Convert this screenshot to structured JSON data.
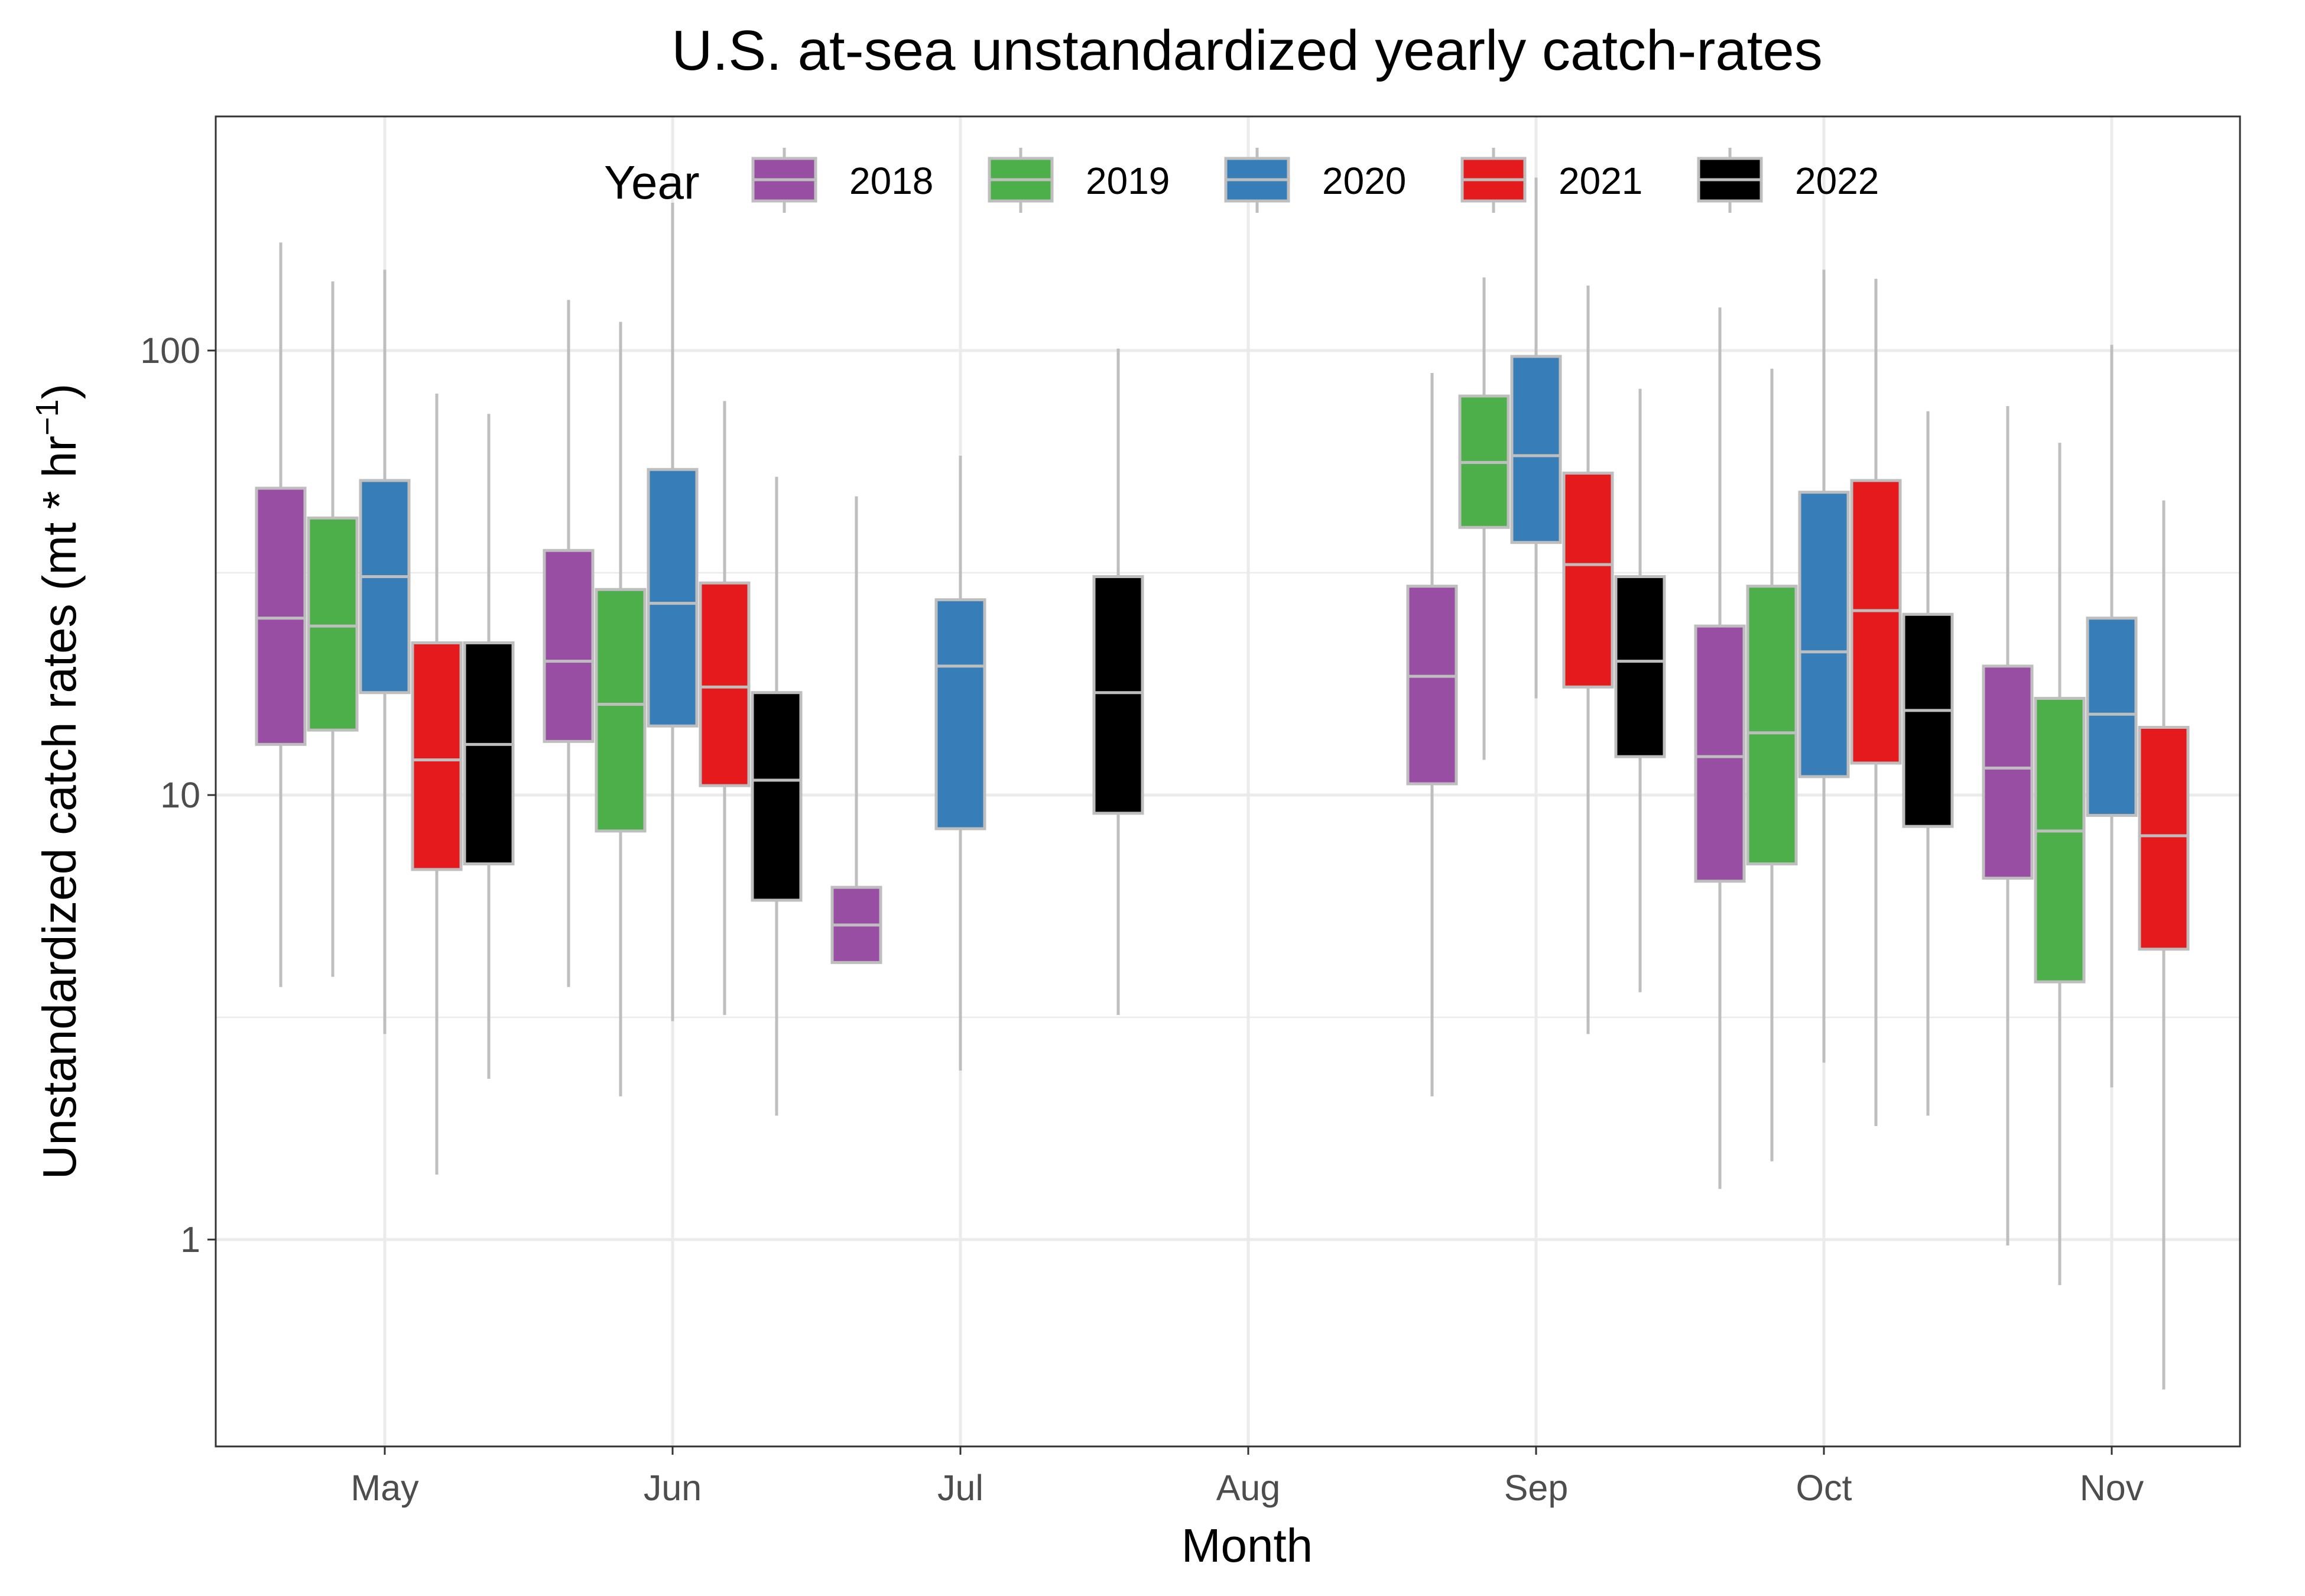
{
  "chart_data": {
    "type": "boxplot",
    "title": "U.S. at-sea unstandardized yearly catch-rates",
    "xlabel": "Month",
    "ylabel": {
      "main": "Unstandardized catch rates (mt * hr",
      "sup": "−1",
      "close": ")"
    },
    "y_scale": "log10",
    "ylim": [
      0.4,
      300
    ],
    "y_ticks": [
      {
        "value": 1,
        "label": "1"
      },
      {
        "value": 10,
        "label": "10"
      },
      {
        "value": 100,
        "label": "100"
      }
    ],
    "categories": [
      "May",
      "Jun",
      "Jul",
      "Aug",
      "Sep",
      "Oct",
      "Nov"
    ],
    "grid": true,
    "legend": {
      "title": "Year",
      "position": "top-inside"
    },
    "colors": {
      "2018": "#984EA3",
      "2019": "#4DAF4A",
      "2020": "#377EB8",
      "2021": "#E41A1C",
      "2022": "#000000",
      "box_border": "#BEBEBE",
      "whisker": "#BEBEBE",
      "grid": "#EBEBEB",
      "panel_border": "#333333"
    },
    "series": [
      {
        "name": "2018",
        "boxes": [
          {
            "month": "May",
            "offset": -2,
            "low": 3.7,
            "q1": 13,
            "median": 25,
            "q3": 49,
            "high": 175
          },
          {
            "month": "Jun",
            "offset": -2,
            "low": 3.7,
            "q1": 13.2,
            "median": 20,
            "q3": 35.5,
            "high": 130
          },
          {
            "month": "Jul",
            "offset": -2,
            "low": 4.2,
            "q1": 4.2,
            "median": 5.1,
            "q3": 6.2,
            "high": 47
          },
          {
            "month": "Sep",
            "offset": -2,
            "low": 2.1,
            "q1": 10.6,
            "median": 18.5,
            "q3": 29.5,
            "high": 89
          },
          {
            "month": "Oct",
            "offset": -2,
            "low": 1.3,
            "q1": 6.4,
            "median": 12.2,
            "q3": 24,
            "high": 125
          },
          {
            "month": "Nov",
            "offset": -2,
            "low": 0.97,
            "q1": 6.5,
            "median": 11.5,
            "q3": 19.5,
            "high": 75
          }
        ]
      },
      {
        "name": "2019",
        "boxes": [
          {
            "month": "May",
            "offset": -1,
            "low": 3.9,
            "q1": 14,
            "median": 24,
            "q3": 42,
            "high": 143
          },
          {
            "month": "Jun",
            "offset": -1,
            "low": 2.1,
            "q1": 8.3,
            "median": 16,
            "q3": 29,
            "high": 116
          },
          {
            "month": "Sep",
            "offset": -1,
            "low": 12,
            "q1": 40,
            "median": 56,
            "q3": 79,
            "high": 146
          },
          {
            "month": "Oct",
            "offset": -1,
            "low": 1.5,
            "q1": 7,
            "median": 13.8,
            "q3": 29.5,
            "high": 91
          },
          {
            "month": "Nov",
            "offset": -1,
            "low": 0.79,
            "q1": 3.8,
            "median": 8.3,
            "q3": 16.5,
            "high": 62
          }
        ]
      },
      {
        "name": "2020",
        "boxes": [
          {
            "month": "May",
            "offset": 0,
            "low": 2.9,
            "q1": 17,
            "median": 31,
            "q3": 51,
            "high": 152
          },
          {
            "month": "Jun",
            "offset": 0,
            "low": 3.1,
            "q1": 14.3,
            "median": 27,
            "q3": 54,
            "high": 215
          },
          {
            "month": "Jul",
            "offset": 0,
            "low": 2.4,
            "q1": 8.4,
            "median": 19.5,
            "q3": 27.5,
            "high": 58
          },
          {
            "month": "Sep",
            "offset": 0,
            "low": 16.5,
            "q1": 37,
            "median": 58,
            "q3": 97,
            "high": 245
          },
          {
            "month": "Oct",
            "offset": 0,
            "low": 2.5,
            "q1": 11,
            "median": 21,
            "q3": 48,
            "high": 152
          },
          {
            "month": "Nov",
            "offset": 0,
            "low": 2.2,
            "q1": 9,
            "median": 15.2,
            "q3": 25,
            "high": 103
          }
        ]
      },
      {
        "name": "2021",
        "boxes": [
          {
            "month": "May",
            "offset": 1,
            "low": 1.4,
            "q1": 6.8,
            "median": 12,
            "q3": 22,
            "high": 80
          },
          {
            "month": "Jun",
            "offset": 1,
            "low": 3.2,
            "q1": 10.5,
            "median": 17.5,
            "q3": 30,
            "high": 77
          },
          {
            "month": "Sep",
            "offset": 1,
            "low": 2.9,
            "q1": 17.5,
            "median": 33,
            "q3": 53,
            "high": 140
          },
          {
            "month": "Oct",
            "offset": 1,
            "low": 1.8,
            "q1": 11.8,
            "median": 26,
            "q3": 51,
            "high": 145
          },
          {
            "month": "Nov",
            "offset": 1,
            "low": 0.46,
            "q1": 4.5,
            "median": 8.1,
            "q3": 14.2,
            "high": 46
          }
        ]
      },
      {
        "name": "2022",
        "boxes": [
          {
            "month": "May",
            "offset": 2,
            "low": 2.3,
            "q1": 7,
            "median": 13,
            "q3": 22,
            "high": 72
          },
          {
            "month": "Jun",
            "offset": 2,
            "low": 1.9,
            "q1": 5.8,
            "median": 10.8,
            "q3": 17,
            "high": 52
          },
          {
            "month": "Aug",
            "offset": -2.5,
            "low": 3.2,
            "q1": 9.1,
            "median": 17,
            "q3": 31,
            "high": 101
          },
          {
            "month": "Sep",
            "offset": 2,
            "low": 3.6,
            "q1": 12.2,
            "median": 20,
            "q3": 31,
            "high": 82
          },
          {
            "month": "Oct",
            "offset": 2,
            "low": 1.9,
            "q1": 8.5,
            "median": 15.5,
            "q3": 25.5,
            "high": 73
          }
        ]
      }
    ]
  }
}
